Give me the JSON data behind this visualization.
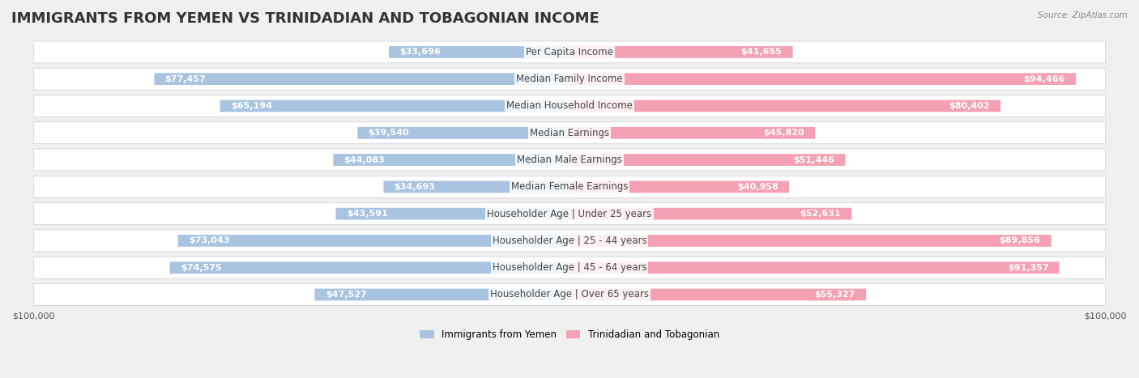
{
  "title": "IMMIGRANTS FROM YEMEN VS TRINIDADIAN AND TOBAGONIAN INCOME",
  "source": "Source: ZipAtlas.com",
  "categories": [
    "Per Capita Income",
    "Median Family Income",
    "Median Household Income",
    "Median Earnings",
    "Median Male Earnings",
    "Median Female Earnings",
    "Householder Age | Under 25 years",
    "Householder Age | 25 - 44 years",
    "Householder Age | 45 - 64 years",
    "Householder Age | Over 65 years"
  ],
  "yemen_values": [
    33696,
    77457,
    65194,
    39540,
    44083,
    34693,
    43591,
    73043,
    74575,
    47527
  ],
  "tt_values": [
    41655,
    94466,
    80402,
    45820,
    51446,
    40958,
    52631,
    89856,
    91357,
    55327
  ],
  "max_value": 100000,
  "yemen_color": "#a8c4e0",
  "tt_color": "#f4a0b5",
  "yemen_label": "Immigrants from Yemen",
  "tt_label": "Trinidadian and Tobagonian",
  "bg_color": "#f0f0f0",
  "row_bg_color": "#ffffff",
  "bar_bg_color": "#e8e8e8",
  "title_fontsize": 13,
  "label_fontsize": 8.5,
  "value_fontsize": 8,
  "axis_label_fontsize": 8
}
